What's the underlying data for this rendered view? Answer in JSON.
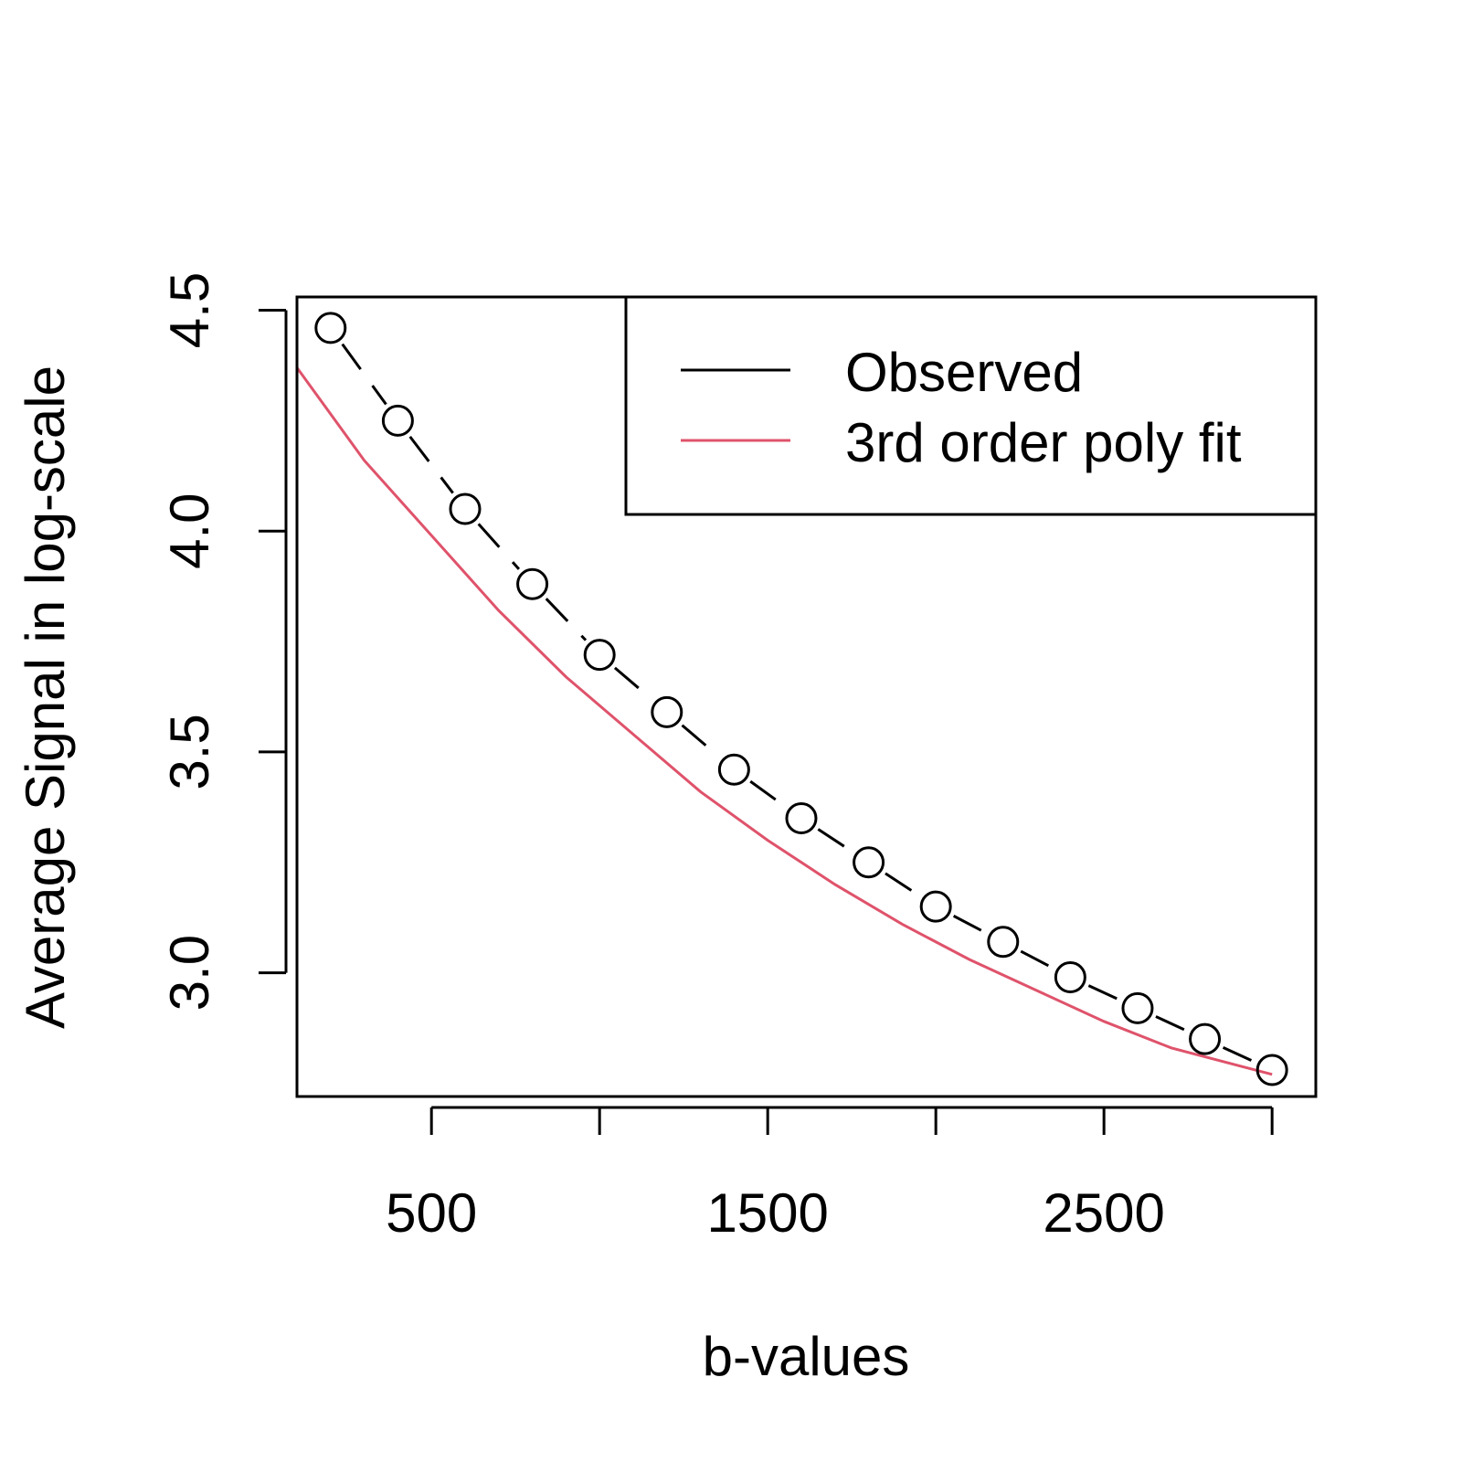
{
  "chart_data": {
    "type": "line",
    "xlabel": "b-values",
    "ylabel": "Average Signal in log-scale",
    "xlim": [
      100,
      3130
    ],
    "ylim": [
      2.72,
      4.53
    ],
    "x_ticks": [
      500,
      1000,
      1500,
      2000,
      2500,
      3000
    ],
    "x_tick_labels": [
      "500",
      "",
      "1500",
      "",
      "2500",
      ""
    ],
    "y_ticks": [
      3.0,
      3.5,
      4.0,
      4.5
    ],
    "y_tick_labels": [
      "3.0",
      "3.5",
      "4.0",
      "4.5"
    ],
    "grid": false,
    "legend_position": "top-right",
    "series": [
      {
        "name": "Observed",
        "style": "dashed line with open circles",
        "color": "#000000",
        "x": [
          200,
          400,
          600,
          800,
          1000,
          1200,
          1400,
          1600,
          1800,
          2000,
          2200,
          2400,
          2600,
          2800,
          3000
        ],
        "y": [
          4.46,
          4.25,
          4.05,
          3.88,
          3.72,
          3.59,
          3.46,
          3.35,
          3.25,
          3.15,
          3.07,
          2.99,
          2.92,
          2.85,
          2.78
        ]
      },
      {
        "name": "3rd order poly fit",
        "style": "solid line",
        "color": "#DF536B",
        "x": [
          100,
          300,
          500,
          700,
          900,
          1100,
          1300,
          1500,
          1700,
          1900,
          2100,
          2300,
          2500,
          2700,
          2900,
          3000
        ],
        "y": [
          4.37,
          4.16,
          3.99,
          3.82,
          3.67,
          3.54,
          3.41,
          3.3,
          3.2,
          3.11,
          3.03,
          2.96,
          2.89,
          2.83,
          2.79,
          2.77
        ]
      }
    ]
  }
}
